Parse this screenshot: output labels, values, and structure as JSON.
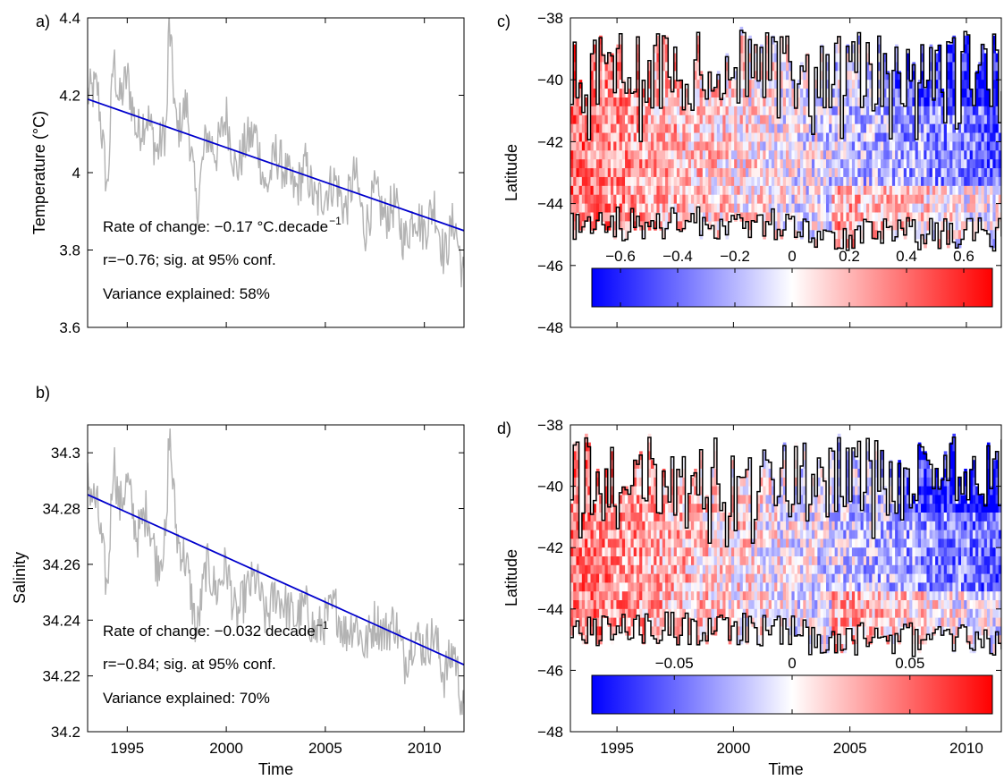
{
  "colors": {
    "raw_series": "#b3b3b3",
    "trend_line": "#0000cc",
    "diverging_low": "#0000ff",
    "diverging_mid": "#ffffff",
    "diverging_high": "#ff0000",
    "contour": "#000000"
  },
  "chart_data": [
    {
      "panel": "a)",
      "type": "line",
      "xlabel": "",
      "ylabel": "Temperature (°C)",
      "xlim": [
        1993,
        2012
      ],
      "ylim": [
        3.6,
        4.4
      ],
      "xticks": [
        1995,
        2000,
        2005,
        2010
      ],
      "xtick_labels": [
        "",
        "",
        "",
        ""
      ],
      "yticks": [
        3.6,
        3.8,
        4.0,
        4.2,
        4.4
      ],
      "ytick_labels": [
        "3.6",
        "3.8",
        "4",
        "4.2",
        "4.4"
      ],
      "series": [
        {
          "style": "raw",
          "x": [
            1993.0,
            1993.5,
            1994.0,
            1994.3,
            1994.6,
            1995.0,
            1995.5,
            1996.0,
            1996.5,
            1997.0,
            1997.1,
            1997.5,
            1998.0,
            1998.5,
            1999.0,
            1999.5,
            2000.0,
            2000.5,
            2001.0,
            2001.5,
            2002.0,
            2002.5,
            2003.0,
            2003.5,
            2004.0,
            2004.5,
            2005.0,
            2005.5,
            2006.0,
            2006.5,
            2007.0,
            2007.5,
            2008.0,
            2008.5,
            2009.0,
            2009.5,
            2010.0,
            2010.5,
            2011.0,
            2011.5,
            2012.0
          ],
          "y": [
            4.2,
            4.22,
            3.95,
            4.3,
            4.18,
            4.25,
            4.1,
            4.15,
            4.05,
            4.12,
            4.4,
            4.1,
            4.18,
            3.9,
            4.1,
            4.05,
            4.15,
            4.0,
            4.08,
            4.1,
            3.95,
            4.05,
            4.0,
            3.95,
            4.02,
            3.92,
            3.95,
            3.98,
            3.9,
            4.0,
            3.85,
            3.95,
            3.88,
            3.92,
            3.82,
            3.9,
            3.85,
            3.92,
            3.78,
            3.88,
            3.72
          ]
        },
        {
          "style": "trend",
          "x": [
            1993,
            2012
          ],
          "y": [
            4.19,
            3.85
          ]
        }
      ],
      "annotations": [
        "Rate of change: −0.17 °C.decade",
        "r=−0.76; sig. at 95% conf.",
        "Variance explained: 58%"
      ],
      "annotation_superscript": "−1"
    },
    {
      "panel": "b)",
      "type": "line",
      "xlabel": "Time",
      "ylabel": "Salinity",
      "xlim": [
        1993,
        2012
      ],
      "ylim": [
        34.2,
        34.31
      ],
      "xticks": [
        1995,
        2000,
        2005,
        2010
      ],
      "xtick_labels": [
        "1995",
        "2000",
        "2005",
        "2010"
      ],
      "yticks": [
        34.2,
        34.22,
        34.24,
        34.26,
        34.28,
        34.3
      ],
      "ytick_labels": [
        "34.2",
        "34.22",
        "34.24",
        "34.26",
        "34.28",
        "34.3"
      ],
      "series": [
        {
          "style": "raw",
          "x": [
            1993.0,
            1993.5,
            1994.0,
            1994.3,
            1994.6,
            1995.0,
            1995.5,
            1996.0,
            1996.5,
            1997.0,
            1997.1,
            1997.5,
            1998.0,
            1998.5,
            1999.0,
            1999.5,
            2000.0,
            2000.5,
            2001.0,
            2001.5,
            2002.0,
            2002.5,
            2003.0,
            2003.5,
            2004.0,
            2004.5,
            2005.0,
            2005.5,
            2006.0,
            2006.5,
            2007.0,
            2007.5,
            2008.0,
            2008.5,
            2009.0,
            2009.5,
            2010.0,
            2010.5,
            2011.0,
            2011.5,
            2012.0
          ],
          "y": [
            34.29,
            34.28,
            34.25,
            34.3,
            34.28,
            34.29,
            34.27,
            34.28,
            34.26,
            34.27,
            34.31,
            34.27,
            34.26,
            34.235,
            34.26,
            34.25,
            34.26,
            34.24,
            34.25,
            34.255,
            34.24,
            34.25,
            34.245,
            34.24,
            34.245,
            34.235,
            34.24,
            34.245,
            34.235,
            34.24,
            34.23,
            34.24,
            34.235,
            34.24,
            34.225,
            34.235,
            34.23,
            34.235,
            34.22,
            34.23,
            34.205
          ]
        },
        {
          "style": "trend",
          "x": [
            1993,
            2012
          ],
          "y": [
            34.285,
            34.224
          ]
        }
      ],
      "annotations": [
        "Rate of change: −0.032 decade",
        "r=−0.84; sig. at 95% conf.",
        "Variance explained: 70%"
      ],
      "annotation_superscript": "−1"
    },
    {
      "panel": "c)",
      "type": "heatmap",
      "xlabel": "",
      "ylabel": "Latitude",
      "xlim": [
        1993,
        2011.5
      ],
      "ylim": [
        -48,
        -38
      ],
      "xticks": [
        1995,
        2000,
        2005,
        2010
      ],
      "xtick_labels": [
        "",
        "",
        "",
        ""
      ],
      "yticks": [
        -48,
        -46,
        -44,
        -42,
        -40,
        -38
      ],
      "ytick_labels": [
        "−48",
        "−46",
        "−44",
        "−42",
        "−40",
        "−38"
      ],
      "colorbar": {
        "range": [
          -0.7,
          0.7
        ],
        "ticks": [
          -0.6,
          -0.4,
          -0.2,
          0,
          0.2,
          0.4,
          0.6
        ],
        "tick_labels": [
          "−0.6",
          "−0.4",
          "−0.2",
          "0",
          "0.2",
          "0.4",
          "0.6"
        ]
      }
    },
    {
      "panel": "d)",
      "type": "heatmap",
      "xlabel": "Time",
      "ylabel": "Latitude",
      "xlim": [
        1993,
        2011.5
      ],
      "ylim": [
        -48,
        -38
      ],
      "xticks": [
        1995,
        2000,
        2005,
        2010
      ],
      "xtick_labels": [
        "1995",
        "2000",
        "2005",
        "2010"
      ],
      "yticks": [
        -48,
        -46,
        -44,
        -42,
        -40,
        -38
      ],
      "ytick_labels": [
        "−48",
        "−46",
        "−44",
        "−42",
        "−40",
        "−38"
      ],
      "colorbar": {
        "range": [
          -0.085,
          0.085
        ],
        "ticks": [
          -0.05,
          0,
          0.05
        ],
        "tick_labels": [
          "−0.05",
          "0",
          "0.05"
        ]
      }
    }
  ]
}
